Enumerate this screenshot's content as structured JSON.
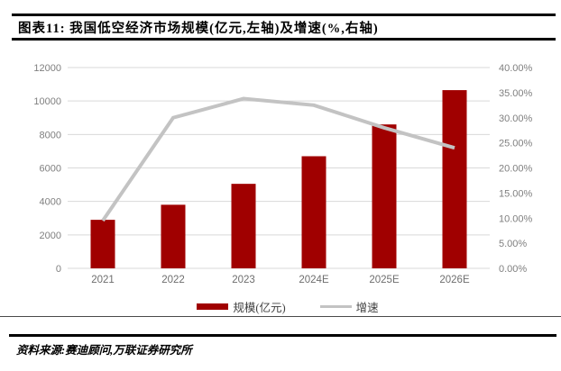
{
  "header": {
    "title": "图表11: 我国低空经济市场规模(亿元,左轴)及增速(%,右轴)"
  },
  "chart_data": {
    "type": "bar",
    "subtype": "combo-bar-line-dual-axis",
    "title": "我国低空经济市场规模(亿元,左轴)及增速(%,右轴)",
    "categories": [
      "2021",
      "2022",
      "2023",
      "2024E",
      "2025E",
      "2026E"
    ],
    "series": [
      {
        "name": "规模(亿元)",
        "type": "bar",
        "axis": "left",
        "color": "#A00000",
        "values": [
          2900,
          3800,
          5050,
          6700,
          8600,
          10650
        ]
      },
      {
        "name": "增速",
        "type": "line",
        "axis": "right",
        "color": "#C3C3C3",
        "values": [
          9.5,
          30.0,
          33.8,
          32.5,
          28.0,
          24.0
        ]
      }
    ],
    "left_axis": {
      "min": 0,
      "max": 12000,
      "step": 2000,
      "labels": [
        "0",
        "2000",
        "4000",
        "6000",
        "8000",
        "10000",
        "12000"
      ]
    },
    "right_axis": {
      "min": 0,
      "max": 40,
      "step": 5,
      "labels": [
        "0.00%",
        "5.00%",
        "10.00%",
        "15.00%",
        "20.00%",
        "25.00%",
        "30.00%",
        "35.00%",
        "40.00%"
      ]
    },
    "grid": true,
    "gridline_color": "#D9D9D9",
    "legend_position": "bottom"
  },
  "legend": {
    "items": [
      {
        "label": "规模(亿元)",
        "swatch": "bar",
        "color": "#A00000"
      },
      {
        "label": "增速",
        "swatch": "line",
        "color": "#C3C3C3"
      }
    ]
  },
  "source": {
    "text": "资料来源:赛迪顾问,万联证券研究所"
  },
  "colors": {
    "bar": "#A00000",
    "line": "#C3C3C3",
    "gridline": "#D9D9D9",
    "axis_text": "#7F7F7F",
    "rule": "#000000"
  }
}
